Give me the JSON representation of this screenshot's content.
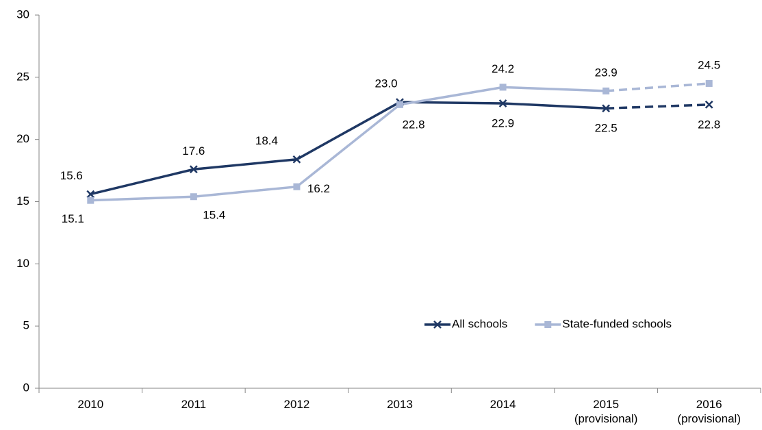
{
  "chart_data": {
    "type": "line",
    "categories": [
      "2010",
      "2011",
      "2012",
      "2013",
      "2014",
      "2015\n(provisional)",
      "2016\n(provisional)"
    ],
    "series": [
      {
        "name": "All schools",
        "color": "#1f3864",
        "marker": "x",
        "dash_from": 5,
        "values": [
          15.6,
          17.6,
          18.4,
          23.0,
          22.9,
          22.5,
          22.8
        ],
        "value_labels": [
          "15.6",
          "17.6",
          "18.4",
          "23.0",
          "22.9",
          "22.5",
          "22.8"
        ]
      },
      {
        "name": "State-funded schools",
        "color": "#a9b7d6",
        "marker": "square",
        "dash_from": 5,
        "values": [
          15.1,
          15.4,
          16.2,
          22.8,
          24.2,
          23.9,
          24.5
        ]
      }
    ],
    "ylim": [
      0,
      30
    ],
    "yticks": [
      0,
      5,
      10,
      15,
      20,
      25,
      30
    ],
    "grid": false,
    "legend": "lower right"
  }
}
